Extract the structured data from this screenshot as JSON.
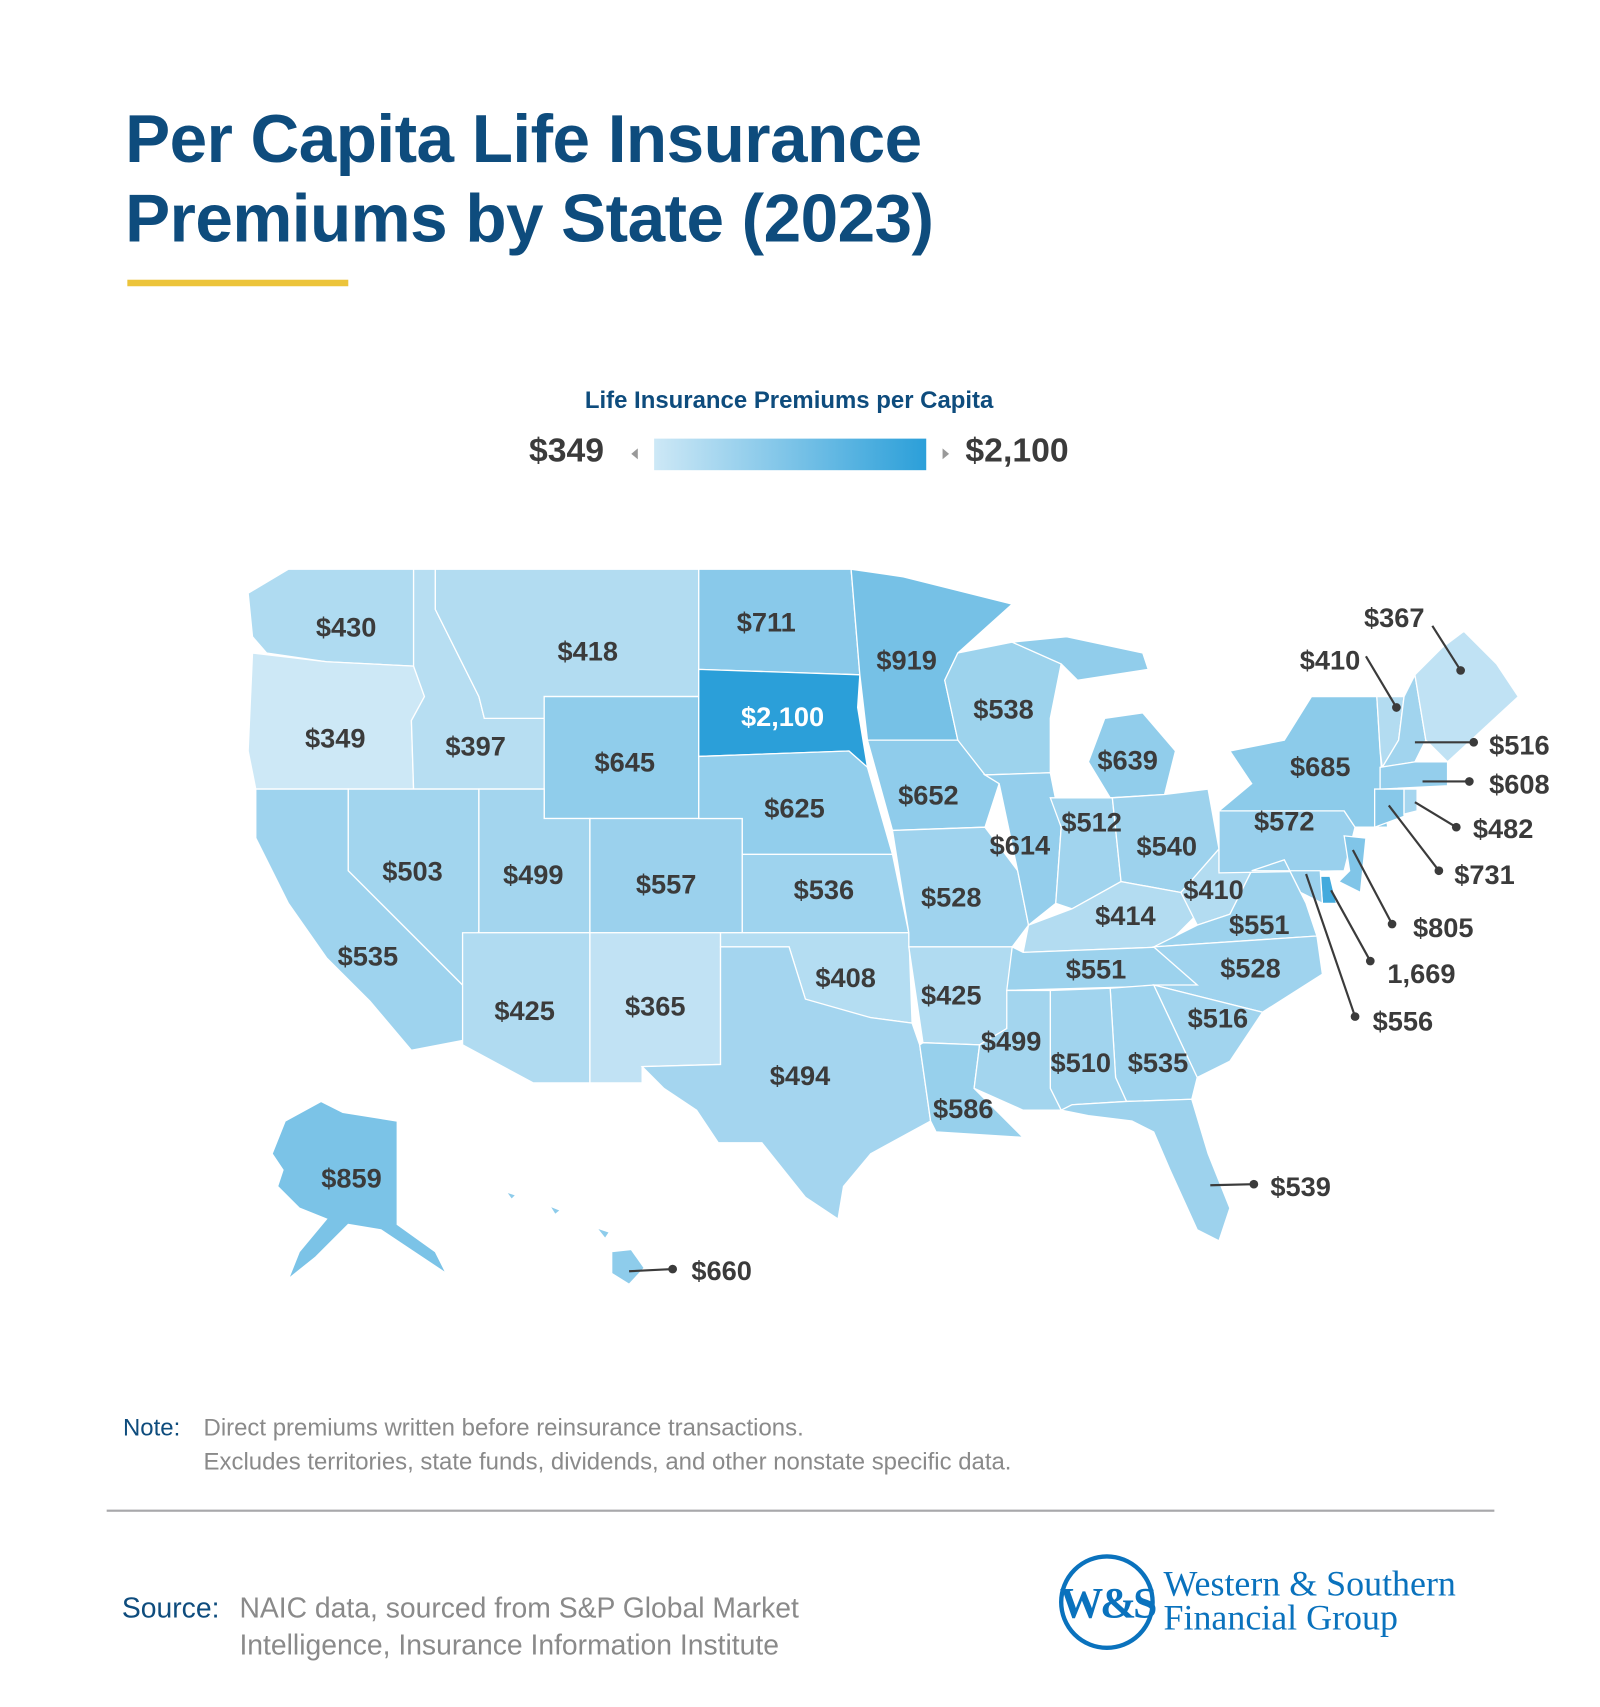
{
  "title_line1": "Per Capita Life Insurance",
  "title_line2": "Premiums by State (2023)",
  "legend": {
    "title": "Life Insurance Premiums per Capita",
    "min_label": "$349",
    "max_label": "$2,100",
    "min": 349,
    "max": 2100,
    "color_low": "#cde8f6",
    "color_high": "#2b9fd9"
  },
  "label_color": "#3b3b3b",
  "states": [
    {
      "abbr": "WA",
      "value": 430,
      "label": "$430"
    },
    {
      "abbr": "OR",
      "value": 349,
      "label": "$349"
    },
    {
      "abbr": "CA",
      "value": 535,
      "label": "$535"
    },
    {
      "abbr": "ID",
      "value": 397,
      "label": "$397"
    },
    {
      "abbr": "MT",
      "value": 418,
      "label": "$418"
    },
    {
      "abbr": "WY",
      "value": 645,
      "label": "$645"
    },
    {
      "abbr": "NV",
      "value": 503,
      "label": "$503"
    },
    {
      "abbr": "UT",
      "value": 499,
      "label": "$499"
    },
    {
      "abbr": "CO",
      "value": 557,
      "label": "$557"
    },
    {
      "abbr": "AZ",
      "value": 425,
      "label": "$425"
    },
    {
      "abbr": "NM",
      "value": 365,
      "label": "$365"
    },
    {
      "abbr": "ND",
      "value": 711,
      "label": "$711"
    },
    {
      "abbr": "SD",
      "value": 2100,
      "label": "$2,100"
    },
    {
      "abbr": "NE",
      "value": 625,
      "label": "$625"
    },
    {
      "abbr": "KS",
      "value": 536,
      "label": "$536"
    },
    {
      "abbr": "OK",
      "value": 408,
      "label": "$408"
    },
    {
      "abbr": "TX",
      "value": 494,
      "label": "$494"
    },
    {
      "abbr": "MN",
      "value": 919,
      "label": "$919"
    },
    {
      "abbr": "IA",
      "value": 652,
      "label": "$652"
    },
    {
      "abbr": "MO",
      "value": 528,
      "label": "$528"
    },
    {
      "abbr": "AR",
      "value": 425,
      "label": "$425"
    },
    {
      "abbr": "LA",
      "value": 586,
      "label": "$586"
    },
    {
      "abbr": "WI",
      "value": 538,
      "label": "$538"
    },
    {
      "abbr": "IL",
      "value": 614,
      "label": "$614"
    },
    {
      "abbr": "MI",
      "value": 639,
      "label": "$639"
    },
    {
      "abbr": "IN",
      "value": 512,
      "label": "$512"
    },
    {
      "abbr": "OH",
      "value": 540,
      "label": "$540"
    },
    {
      "abbr": "KY",
      "value": 414,
      "label": "$414"
    },
    {
      "abbr": "TN",
      "value": 551,
      "label": "$551"
    },
    {
      "abbr": "WV",
      "value": 410,
      "label": "$410"
    },
    {
      "abbr": "VA",
      "value": 551,
      "label": "$551"
    },
    {
      "abbr": "NC",
      "value": 528,
      "label": "$528"
    },
    {
      "abbr": "SC",
      "value": 516,
      "label": "$516"
    },
    {
      "abbr": "GA",
      "value": 535,
      "label": "$535"
    },
    {
      "abbr": "AL",
      "value": 510,
      "label": "$510"
    },
    {
      "abbr": "MS",
      "value": 499,
      "label": "$499"
    },
    {
      "abbr": "FL",
      "value": 539,
      "label": "$539"
    },
    {
      "abbr": "PA",
      "value": 572,
      "label": "$572"
    },
    {
      "abbr": "NY",
      "value": 685,
      "label": "$685"
    },
    {
      "abbr": "VT",
      "value": 410,
      "label": "$410"
    },
    {
      "abbr": "NH",
      "value": 516,
      "label": "$516"
    },
    {
      "abbr": "ME",
      "value": 367,
      "label": "$367"
    },
    {
      "abbr": "MA",
      "value": 608,
      "label": "$608"
    },
    {
      "abbr": "CT",
      "value": 731,
      "label": "$731"
    },
    {
      "abbr": "RI",
      "value": 482,
      "label": "$482"
    },
    {
      "abbr": "NJ",
      "value": 805,
      "label": "$805"
    },
    {
      "abbr": "DE",
      "value": 1669,
      "label": "1,669"
    },
    {
      "abbr": "MD",
      "value": 556,
      "label": "$556"
    },
    {
      "abbr": "AK",
      "value": 859,
      "label": "$859"
    },
    {
      "abbr": "HI",
      "value": 660,
      "label": "$660"
    }
  ],
  "note": {
    "label": "Note:",
    "line1": "Direct premiums written before reinsurance transactions.",
    "line2": "Excludes territories, state funds, dividends, and other nonstate specific data."
  },
  "source": {
    "label": "Source:",
    "line1": "NAIC data, sourced from S&P Global Market",
    "line2": "Intelligence, Insurance Information Institute"
  },
  "logo": {
    "mark": "W&S",
    "line1": "Western & Southern",
    "line2": "Financial Group"
  }
}
